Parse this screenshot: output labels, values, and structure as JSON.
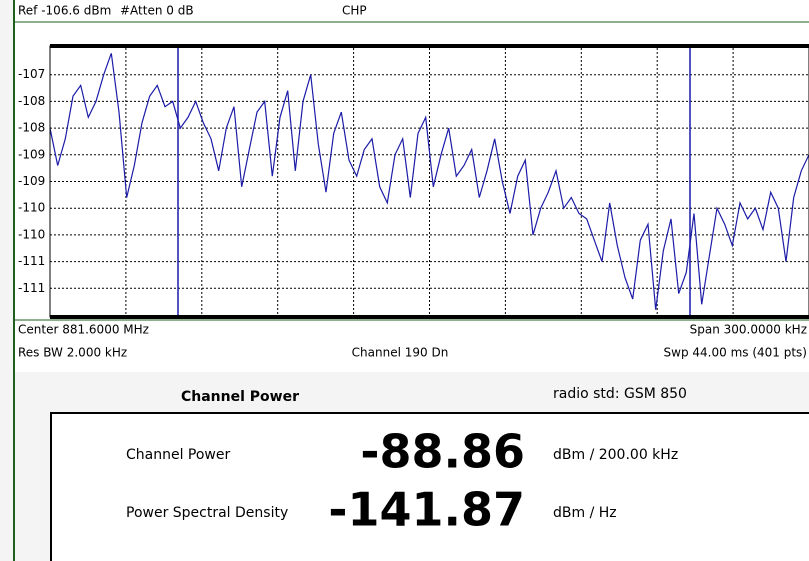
{
  "header": {
    "reference": "Ref -106.6 dBm",
    "attenuation": "#Atten 0 dB",
    "mode": "CHP"
  },
  "chart_data": {
    "type": "line",
    "series": [
      {
        "color": "#1c1ca8",
        "values": [
          -108.1,
          -108.8,
          -108.3,
          -107.5,
          -107.3,
          -107.9,
          -107.6,
          -107.1,
          -106.7,
          -107.8,
          -109.4,
          -108.8,
          -108.0,
          -107.5,
          -107.3,
          -107.7,
          -107.6,
          -108.1,
          -107.9,
          -107.6,
          -108.0,
          -108.3,
          -108.9,
          -108.1,
          -107.7,
          -109.2,
          -108.5,
          -107.8,
          -107.6,
          -109.0,
          -107.9,
          -107.4,
          -108.9,
          -107.6,
          -107.1,
          -108.4,
          -109.3,
          -108.2,
          -107.8,
          -108.7,
          -109.0,
          -108.5,
          -108.3,
          -109.2,
          -109.5,
          -108.6,
          -108.3,
          -109.4,
          -108.2,
          -107.9,
          -109.2,
          -108.6,
          -108.1,
          -109.0,
          -108.8,
          -108.5,
          -109.4,
          -108.9,
          -108.3,
          -109.1,
          -109.7,
          -109.0,
          -108.7,
          -110.1,
          -109.6,
          -109.3,
          -108.9,
          -109.6,
          -109.4,
          -109.7,
          -109.8,
          -110.2,
          -110.6,
          -109.5,
          -110.3,
          -110.9,
          -111.3,
          -110.2,
          -109.9,
          -111.5,
          -110.4,
          -109.8,
          -111.2,
          -110.8,
          -109.7,
          -111.4,
          -110.5,
          -109.6,
          -109.9,
          -110.3,
          -109.5,
          -109.8,
          -109.6,
          -110.0,
          -109.3,
          -109.6,
          -110.6,
          -109.4,
          -108.9,
          -108.6
        ]
      }
    ],
    "ylim": [
      -111.6,
      -106.6
    ],
    "yticks": [
      {
        "value": -107.1,
        "label": "-107"
      },
      {
        "value": -107.6,
        "label": "-108"
      },
      {
        "value": -108.1,
        "label": "-108"
      },
      {
        "value": -108.6,
        "label": "-109"
      },
      {
        "value": -109.1,
        "label": "-109"
      },
      {
        "value": -109.6,
        "label": "-110"
      },
      {
        "value": -110.1,
        "label": "-110"
      },
      {
        "value": -110.6,
        "label": "-111"
      },
      {
        "value": -111.1,
        "label": "-111"
      }
    ],
    "grid": true
  },
  "footer": {
    "center": "Center 881.6000 MHz",
    "span": "Span 300.0000 kHz",
    "res_bw": "Res BW 2.000 kHz",
    "channel": "Channel 190 Dn",
    "sweep": "Swp 44.00 ms (401 pts)"
  },
  "results": {
    "title": "Channel Power",
    "radio_std": "radio std: GSM 850",
    "rows": [
      {
        "label": "Channel Power",
        "value": -88.86,
        "unit": "dBm / 200.00 kHz"
      },
      {
        "label": "Power Spectral Density",
        "value": -141.87,
        "unit": "dBm / Hz"
      }
    ]
  }
}
